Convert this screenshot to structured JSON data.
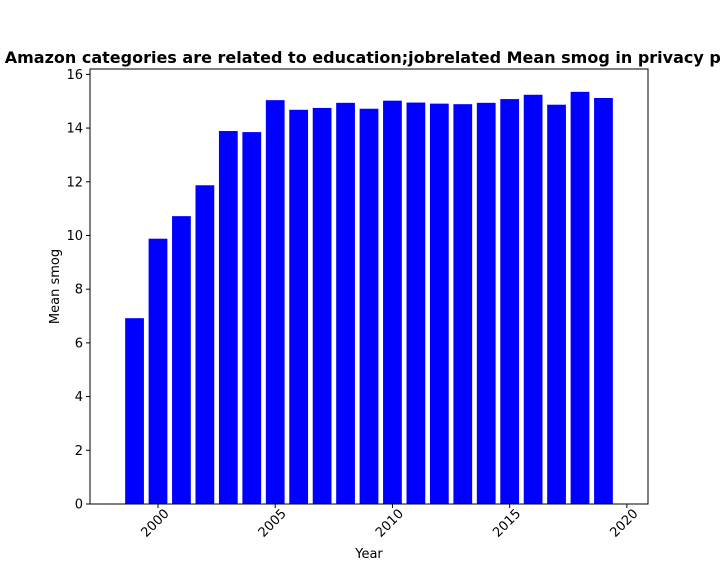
{
  "chart_data": {
    "type": "bar",
    "title": "Top ranking: Amazon categories are related to education;jobrelated Mean smog in privacy policies by year",
    "xlabel": "Year",
    "ylabel": "Mean smog",
    "bar_color": "#0000ff",
    "x": [
      1999,
      2000,
      2001,
      2002,
      2003,
      2004,
      2005,
      2006,
      2007,
      2008,
      2009,
      2010,
      2011,
      2012,
      2013,
      2014,
      2015,
      2016,
      2017,
      2018,
      2019
    ],
    "values": [
      6.92,
      9.88,
      10.72,
      11.87,
      13.89,
      13.85,
      15.04,
      14.68,
      14.75,
      14.94,
      14.72,
      15.02,
      14.95,
      14.91,
      14.89,
      14.94,
      15.08,
      15.24,
      14.87,
      15.35,
      15.12
    ],
    "xlim": [
      1997.1,
      2020.9
    ],
    "ylim": [
      0,
      16.2
    ],
    "xticks": [
      2000,
      2005,
      2010,
      2015,
      2020
    ],
    "yticks": [
      0,
      2,
      4,
      6,
      8,
      10,
      12,
      14,
      16
    ],
    "grid": false
  }
}
